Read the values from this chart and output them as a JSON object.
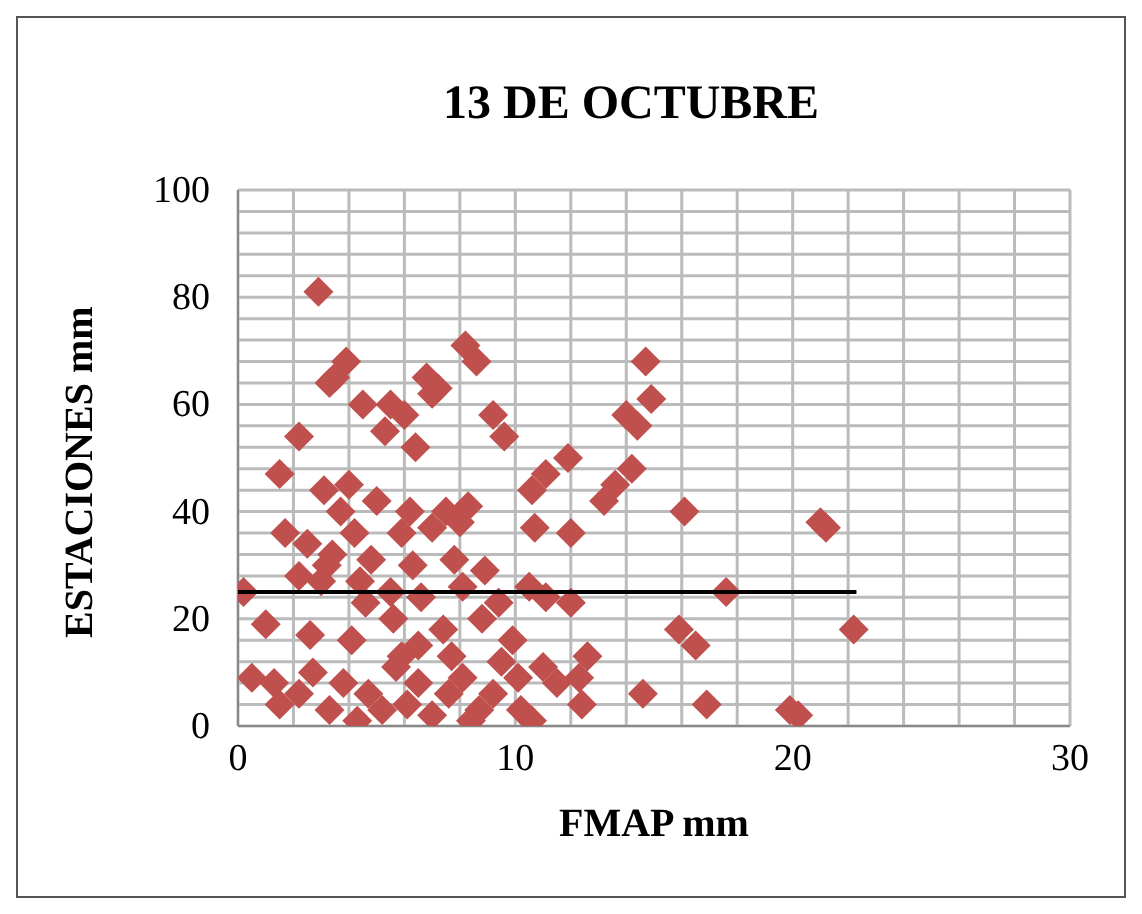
{
  "chart_data": {
    "type": "scatter",
    "title": "13 DE OCTUBRE",
    "xlabel": "FMAP mm",
    "ylabel": "ESTACIONES mm",
    "xlim": [
      0,
      30
    ],
    "ylim": [
      0,
      100
    ],
    "xticks": [
      0,
      {
        "value": 2,
        "label": null
      },
      {
        "value": 4,
        "label": null
      },
      {
        "value": 6,
        "label": null
      },
      {
        "value": 8,
        "label": null
      },
      10,
      {
        "value": 12,
        "label": null
      },
      {
        "value": 14,
        "label": null
      },
      {
        "value": 16,
        "label": null
      },
      {
        "value": 18,
        "label": null
      },
      20,
      {
        "value": 22,
        "label": null
      },
      {
        "value": 24,
        "label": null
      },
      {
        "value": 26,
        "label": null
      },
      {
        "value": 28,
        "label": null
      },
      30
    ],
    "yticks": [
      0,
      {
        "value": 4,
        "label": null
      },
      {
        "value": 8,
        "label": null
      },
      {
        "value": 12,
        "label": null
      },
      {
        "value": 16,
        "label": null
      },
      20,
      {
        "value": 24,
        "label": null
      },
      {
        "value": 28,
        "label": null
      },
      {
        "value": 32,
        "label": null
      },
      {
        "value": 36,
        "label": null
      },
      40,
      {
        "value": 44,
        "label": null
      },
      {
        "value": 48,
        "label": null
      },
      {
        "value": 52,
        "label": null
      },
      {
        "value": 56,
        "label": null
      },
      60,
      {
        "value": 64,
        "label": null
      },
      {
        "value": 68,
        "label": null
      },
      {
        "value": 72,
        "label": null
      },
      {
        "value": 76,
        "label": null
      },
      80,
      {
        "value": 84,
        "label": null
      },
      {
        "value": 88,
        "label": null
      },
      {
        "value": 92,
        "label": null
      },
      {
        "value": 96,
        "label": null
      },
      100
    ],
    "grid": true,
    "legend": false,
    "marker": "diamond",
    "series": [
      {
        "color": "#c0504d",
        "x": [
          2.9,
          3.5,
          3.9,
          3.3,
          8.2,
          8.6,
          6.8,
          7.2,
          7.0,
          5.5,
          4.5,
          6.0,
          5.3,
          9.2,
          9.6,
          6.4,
          2.2,
          1.5,
          4.0,
          3.1,
          3.7,
          5.0,
          6.2,
          7.5,
          8.3,
          8.0,
          7.0,
          5.9,
          4.2,
          1.7,
          2.5,
          3.4,
          4.8,
          6.3,
          7.8,
          8.9,
          2.2,
          3.0,
          4.4,
          5.5,
          0.2,
          6.6,
          8.1,
          10.5,
          9.4,
          5.6,
          1.0,
          2.6,
          4.1,
          6.5,
          7.4,
          8.8,
          10.7,
          10.6,
          11.1,
          11.9,
          12.0,
          13.2,
          13.6,
          14.2,
          14.0,
          14.9,
          14.7,
          14.4,
          16.1,
          12.0,
          11.1,
          15.9,
          16.5,
          17.6,
          14.6,
          16.9,
          19.9,
          20.2,
          21.0,
          21.2,
          22.2,
          12.6,
          12.4,
          11.5,
          11.0,
          10.6,
          10.1,
          9.5,
          9.2,
          8.7,
          8.1,
          7.6,
          7.0,
          6.5,
          6.1,
          5.7,
          5.2,
          4.7,
          4.3,
          3.8,
          3.3,
          2.7,
          2.2,
          1.5,
          0.5,
          1.3,
          3.2,
          4.6,
          5.9,
          7.7,
          9.9,
          12.3,
          10.2,
          8.4
        ],
        "values": [
          81,
          65,
          68,
          64,
          71,
          68,
          65,
          63,
          62,
          60,
          60,
          58,
          55,
          58,
          54,
          52,
          54,
          47,
          45,
          44,
          40,
          42,
          40,
          40,
          41,
          38,
          37,
          36,
          36,
          36,
          34,
          32,
          31,
          30,
          31,
          29,
          28,
          27,
          27,
          25,
          25,
          24,
          26,
          26,
          23,
          20,
          19,
          17,
          16,
          15,
          18,
          20,
          37,
          44,
          47,
          50,
          36,
          42,
          45,
          48,
          58,
          61,
          68,
          56,
          40,
          23,
          24,
          18,
          15,
          25,
          6,
          4,
          3,
          2,
          38,
          37,
          18,
          13,
          4,
          8,
          11,
          1,
          9,
          12,
          6,
          3,
          9,
          6,
          2,
          8,
          4,
          11,
          3,
          6,
          1,
          8,
          3,
          10,
          6,
          4,
          9,
          8,
          30,
          23,
          13,
          13,
          16,
          9,
          3,
          1
        ]
      },
      {
        "type": "line",
        "color": "#000000",
        "marker": "none",
        "x": [
          0,
          22.3
        ],
        "values": [
          25,
          25
        ]
      }
    ]
  }
}
